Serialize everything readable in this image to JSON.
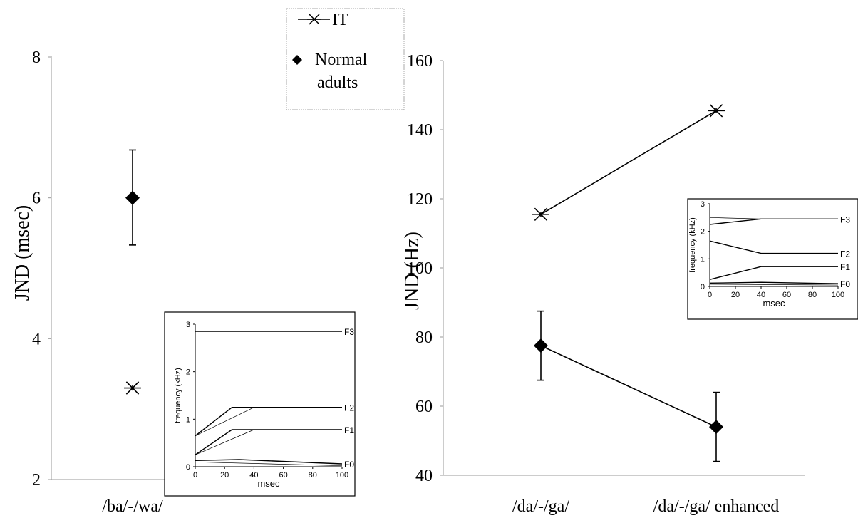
{
  "legend": {
    "items": [
      {
        "label_lines": [
          "IT"
        ],
        "marker": "asterisk"
      },
      {
        "label_lines": [
          "Normal",
          "adults"
        ],
        "marker": "diamond"
      }
    ]
  },
  "chart_data": [
    {
      "type": "scatter",
      "ylabel": "JND (msec)",
      "xlabel": "",
      "categories": [
        "/ba/-/wa/"
      ],
      "ylim": [
        2,
        8
      ],
      "yticks": [
        2,
        4,
        6,
        8
      ],
      "series": [
        {
          "name": "IT",
          "marker": "asterisk",
          "values": [
            3.3
          ]
        },
        {
          "name": "Normal adults",
          "marker": "diamond",
          "values": [
            6.0
          ],
          "err_low": [
            5.33
          ],
          "err_high": [
            6.68
          ]
        }
      ],
      "inset": {
        "ylabel": "frequency (kHz)",
        "xlabel": "msec",
        "xticks": [
          0,
          20,
          40,
          60,
          80,
          100
        ],
        "yticks": [
          0,
          1,
          2,
          3
        ],
        "xlim": [
          0,
          100
        ],
        "ylim": [
          0,
          3
        ],
        "lines": [
          {
            "label": "F3",
            "x": [
              0,
              100
            ],
            "y": [
              2.85,
              2.85
            ]
          },
          {
            "label": "F2",
            "x": [
              0,
              25,
              100
            ],
            "y": [
              0.65,
              1.25,
              1.25
            ]
          },
          {
            "label": "",
            "x": [
              0,
              40
            ],
            "y": [
              0.65,
              1.25
            ]
          },
          {
            "label": "F1",
            "x": [
              0,
              25,
              100
            ],
            "y": [
              0.25,
              0.78,
              0.78
            ]
          },
          {
            "label": "",
            "x": [
              0,
              40
            ],
            "y": [
              0.25,
              0.78
            ]
          },
          {
            "label": "F0",
            "x": [
              0,
              30,
              100
            ],
            "y": [
              0.13,
              0.15,
              0.06
            ]
          },
          {
            "label": "",
            "x": [
              0,
              100
            ],
            "y": [
              0.1,
              0.02
            ]
          }
        ]
      }
    },
    {
      "type": "line",
      "ylabel": "JND (Hz)",
      "xlabel": "",
      "categories": [
        "/da/-/ga/",
        "/da/-/ga/ enhanced"
      ],
      "ylim": [
        40,
        160
      ],
      "yticks": [
        40,
        60,
        80,
        100,
        120,
        140,
        160
      ],
      "series": [
        {
          "name": "IT",
          "marker": "asterisk",
          "values": [
            115.5,
            145.5
          ]
        },
        {
          "name": "Normal adults",
          "marker": "diamond",
          "values": [
            77.5,
            54
          ],
          "err_low": [
            67.5,
            44
          ],
          "err_high": [
            87.5,
            64
          ]
        }
      ],
      "inset": {
        "ylabel": "frequency (kHz)",
        "xlabel": "msec",
        "xticks": [
          0,
          20,
          40,
          60,
          80,
          100
        ],
        "yticks": [
          0,
          1,
          2,
          3
        ],
        "xlim": [
          0,
          100
        ],
        "ylim": [
          0,
          3
        ],
        "lines": [
          {
            "label": "F3",
            "x": [
              0,
              40,
              100
            ],
            "y": [
              2.25,
              2.45,
              2.45
            ]
          },
          {
            "label": "",
            "x": [
              0,
              40
            ],
            "y": [
              2.5,
              2.45
            ]
          },
          {
            "label": "F2",
            "x": [
              0,
              40,
              100
            ],
            "y": [
              1.65,
              1.2,
              1.2
            ]
          },
          {
            "label": "F1",
            "x": [
              0,
              40,
              100
            ],
            "y": [
              0.25,
              0.72,
              0.72
            ]
          },
          {
            "label": "F0",
            "x": [
              0,
              40,
              100
            ],
            "y": [
              0.12,
              0.15,
              0.1
            ]
          },
          {
            "label": "",
            "x": [
              0,
              100
            ],
            "y": [
              0.08,
              0.05
            ]
          }
        ]
      }
    }
  ]
}
